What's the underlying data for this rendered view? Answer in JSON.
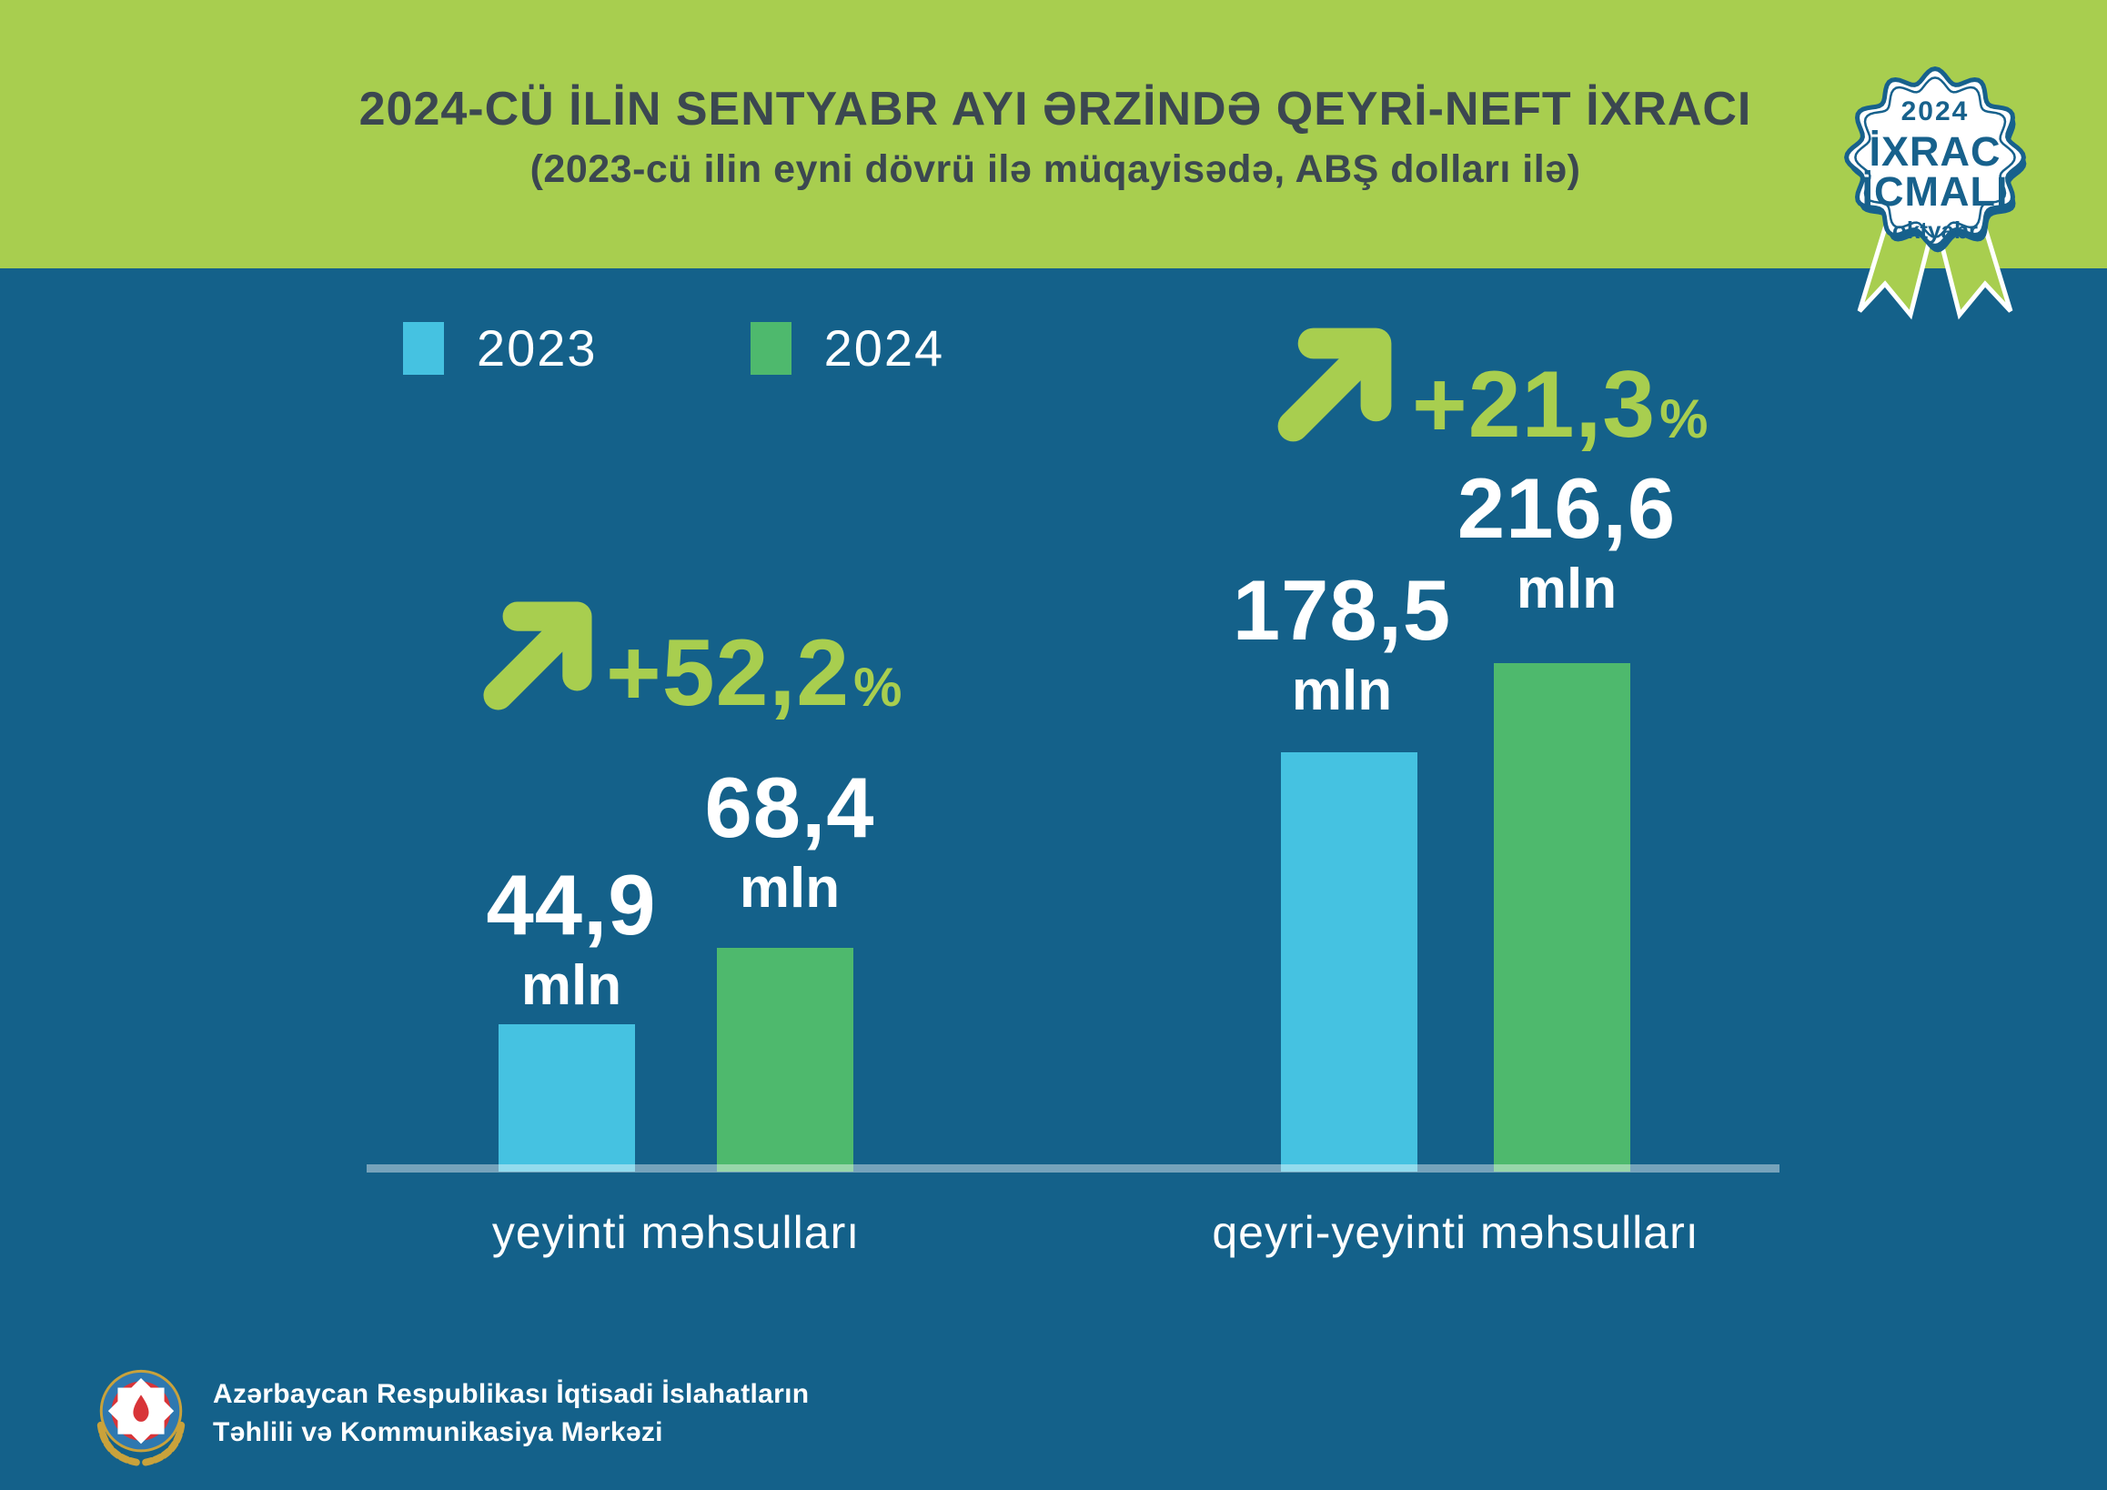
{
  "header": {
    "title": "2024-CÜ İLİN SENTYABR AYI ƏRZİNDƏ QEYRİ-NEFT İXRACI",
    "subtitle": "(2023-cü ilin eyni dövrü ilə müqayisədə, ABŞ dolları ilə)"
  },
  "badge": {
    "year": "2024",
    "title_line1": "İXRAC",
    "title_line2": "İCMALI",
    "month": "oktyabr"
  },
  "legend": {
    "items": [
      {
        "label": "2023"
      },
      {
        "label": "2024"
      }
    ]
  },
  "chart_data": {
    "type": "bar",
    "title": "2024-cü ilin sentyabr ayı ərzində qeyri-neft ixracı",
    "subtitle": "2023-cü ilin eyni dövrü ilə müqayisədə, ABŞ dolları ilə",
    "unit": "mln",
    "categories": [
      "yeyinti məhsulları",
      "qeyri-yeyinti məhsulları"
    ],
    "series": [
      {
        "name": "2023",
        "color": "#45C2E1",
        "values": [
          44.9,
          178.5
        ]
      },
      {
        "name": "2024",
        "color": "#4EB96D",
        "values": [
          68.4,
          216.6
        ]
      }
    ],
    "change_labels": [
      "+52,2%",
      "+21,3%"
    ],
    "legend_position": "top-left",
    "grid": false
  },
  "groups": [
    {
      "category": "yeyinti məhsulları",
      "change_value": "+52,2",
      "percent_sign": "%",
      "bars": [
        {
          "year": "2023",
          "value_label": "44,9",
          "unit": "mln"
        },
        {
          "year": "2024",
          "value_label": "68,4",
          "unit": "mln"
        }
      ]
    },
    {
      "category": "qeyri-yeyinti məhsulları",
      "change_value": "+21,3",
      "percent_sign": "%",
      "bars": [
        {
          "year": "2023",
          "value_label": "178,5",
          "unit": "mln"
        },
        {
          "year": "2024",
          "value_label": "216,6",
          "unit": "mln"
        }
      ]
    }
  ],
  "footer": {
    "org_line1": "Azərbaycan Respublikası İqtisadi İslahatların",
    "org_line2": "Təhlili və Kommunikasiya Mərkəzi"
  },
  "colors": {
    "background": "#14618A",
    "header_green": "#A8CE4F",
    "accent_lime": "#A8CE4F",
    "bar_blue": "#45C2E1",
    "bar_green": "#4EB96D",
    "title_text": "#3B4750",
    "badge_blue": "#17618C",
    "text_white": "#FFFFFF"
  }
}
